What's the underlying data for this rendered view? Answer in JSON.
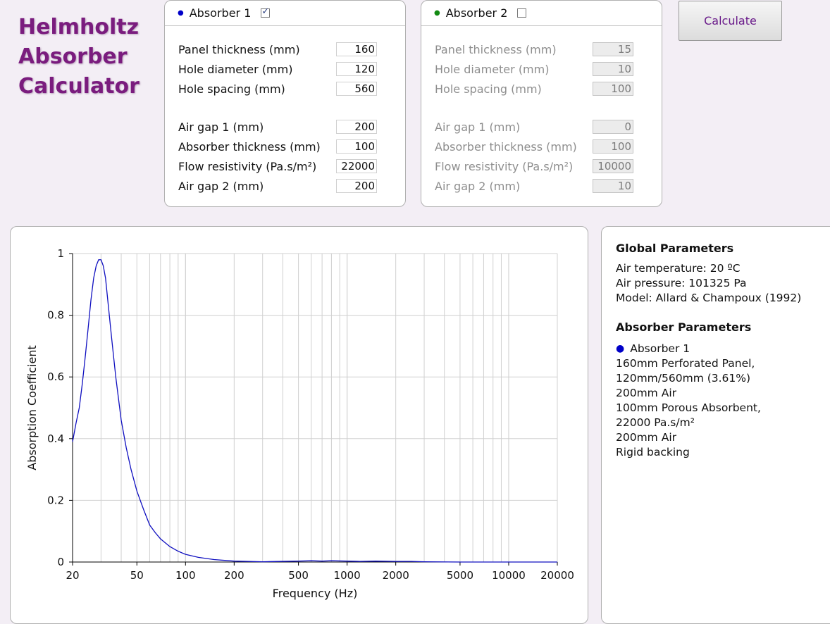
{
  "app": {
    "title_lines": [
      "Helmholtz",
      "Absorber",
      "Calculator"
    ]
  },
  "absorbers": [
    {
      "label": "Absorber 1",
      "dot_color": "#0000c8",
      "checked": true,
      "fields": [
        {
          "label": "Panel thickness (mm)",
          "value": "160"
        },
        {
          "label": "Hole diameter (mm)",
          "value": "120"
        },
        {
          "label": "Hole spacing (mm)",
          "value": "560"
        },
        {
          "label": "Air gap 1 (mm)",
          "value": "200"
        },
        {
          "label": "Absorber thickness (mm)",
          "value": "100"
        },
        {
          "label": "Flow resistivity (Pa.s/m²)",
          "value": "22000"
        },
        {
          "label": "Air gap 2 (mm)",
          "value": "200"
        }
      ]
    },
    {
      "label": "Absorber 2",
      "dot_color": "#128a12",
      "checked": false,
      "fields": [
        {
          "label": "Panel thickness (mm)",
          "value": "15"
        },
        {
          "label": "Hole diameter (mm)",
          "value": "10"
        },
        {
          "label": "Hole spacing (mm)",
          "value": "100"
        },
        {
          "label": "Air gap 1 (mm)",
          "value": "0"
        },
        {
          "label": "Absorber thickness (mm)",
          "value": "100"
        },
        {
          "label": "Flow resistivity (Pa.s/m²)",
          "value": "10000"
        },
        {
          "label": "Air gap 2 (mm)",
          "value": "10"
        }
      ]
    }
  ],
  "toolbar": {
    "calculate_label": "Calculate"
  },
  "info": {
    "global_heading": "Global Parameters",
    "global_lines": [
      "Air temperature: 20 ºC",
      "Air pressure: 101325 Pa",
      "Model: Allard & Champoux (1992)"
    ],
    "absorber_heading": "Absorber Parameters",
    "absorber_label": "Absorber 1",
    "absorber_lines": [
      "160mm Perforated Panel,",
      "120mm/560mm (3.61%)",
      "200mm Air",
      "100mm Porous Absorbent,",
      "22000 Pa.s/m²",
      "200mm Air",
      "Rigid backing"
    ]
  },
  "chart_data": {
    "type": "line",
    "xlabel": "Frequency (Hz)",
    "ylabel": "Absorption Coefficient",
    "x_scale": "log",
    "xlim": [
      20,
      20000
    ],
    "ylim": [
      0,
      1
    ],
    "x_ticks": [
      20,
      50,
      100,
      200,
      500,
      1000,
      2000,
      5000,
      10000,
      20000
    ],
    "x_tick_labels": [
      "20",
      "50",
      "100",
      "200",
      "500",
      "1000",
      "2000",
      "5000",
      "10000",
      "20000"
    ],
    "y_ticks": [
      0,
      0.2,
      0.4,
      0.6,
      0.8,
      1
    ],
    "y_tick_labels": [
      "0",
      "0.2",
      "0.4",
      "0.6",
      "0.8",
      "1"
    ],
    "grid": true,
    "series": [
      {
        "color": "#1010c0",
        "x": [
          20,
          21,
          22,
          23,
          24,
          25,
          26,
          27,
          28,
          29,
          30,
          31,
          32,
          33,
          35,
          37,
          40,
          43,
          46,
          50,
          55,
          60,
          65,
          70,
          80,
          90,
          100,
          120,
          150,
          200,
          300,
          500,
          600,
          700,
          800,
          1000,
          1200,
          1500,
          2000,
          2500,
          3000,
          5000,
          10000,
          20000
        ],
        "y": [
          0.39,
          0.45,
          0.5,
          0.58,
          0.67,
          0.76,
          0.85,
          0.92,
          0.96,
          0.98,
          0.98,
          0.96,
          0.92,
          0.85,
          0.72,
          0.6,
          0.46,
          0.37,
          0.3,
          0.23,
          0.17,
          0.12,
          0.095,
          0.075,
          0.05,
          0.035,
          0.025,
          0.015,
          0.008,
          0.003,
          0.001,
          0.003,
          0.004,
          0.003,
          0.004,
          0.003,
          0.002,
          0.003,
          0.002,
          0.002,
          0.001,
          0.0,
          0.0,
          0.0
        ]
      }
    ]
  }
}
